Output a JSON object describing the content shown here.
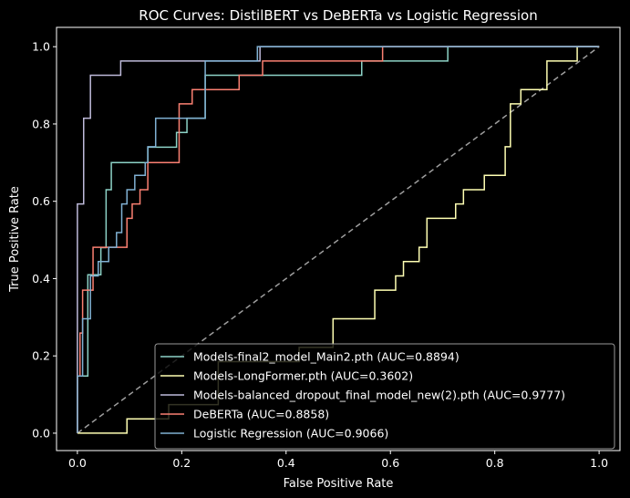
{
  "chart_data": {
    "type": "line",
    "title": "ROC Curves: DistilBERT vs DeBERTa vs Logistic Regression",
    "xlabel": "False Positive Rate",
    "ylabel": "True Positive Rate",
    "xlim": [
      -0.04,
      1.04
    ],
    "ylim": [
      -0.045,
      1.05
    ],
    "xticks": [
      0.0,
      0.2,
      0.4,
      0.6,
      0.8,
      1.0
    ],
    "yticks": [
      0.0,
      0.2,
      0.4,
      0.6,
      0.8,
      1.0
    ],
    "tick_labels_x": [
      "0.0",
      "0.2",
      "0.4",
      "0.6",
      "0.8",
      "1.0"
    ],
    "tick_labels_y": [
      "0.0",
      "0.2",
      "0.4",
      "0.6",
      "0.8",
      "1.0"
    ],
    "grid": false,
    "legend_position": "lower-right",
    "background": "#000000",
    "diagonal": {
      "color": "#9e9e9e",
      "style": "dashed",
      "points": [
        [
          0,
          0
        ],
        [
          1,
          1
        ]
      ]
    },
    "series": [
      {
        "name": "Models-final2_model_Main2.pth (AUC=0.8894)",
        "color": "#8dd3c7",
        "points": [
          [
            0,
            0
          ],
          [
            0,
            0.148
          ],
          [
            0.02,
            0.148
          ],
          [
            0.02,
            0.41
          ],
          [
            0.045,
            0.41
          ],
          [
            0.045,
            0.48
          ],
          [
            0.055,
            0.48
          ],
          [
            0.055,
            0.63
          ],
          [
            0.065,
            0.63
          ],
          [
            0.065,
            0.7
          ],
          [
            0.135,
            0.7
          ],
          [
            0.135,
            0.74
          ],
          [
            0.19,
            0.74
          ],
          [
            0.19,
            0.778
          ],
          [
            0.21,
            0.778
          ],
          [
            0.21,
            0.815
          ],
          [
            0.245,
            0.815
          ],
          [
            0.245,
            0.926
          ],
          [
            0.545,
            0.926
          ],
          [
            0.545,
            0.963
          ],
          [
            0.71,
            0.963
          ],
          [
            0.71,
            1.0
          ],
          [
            1.0,
            1.0
          ]
        ]
      },
      {
        "name": "Models-LongFormer.pth (AUC=0.3602)",
        "color": "#ffffb3",
        "points": [
          [
            0,
            0
          ],
          [
            0.095,
            0
          ],
          [
            0.095,
            0.037
          ],
          [
            0.175,
            0.037
          ],
          [
            0.175,
            0.074
          ],
          [
            0.27,
            0.074
          ],
          [
            0.27,
            0.185
          ],
          [
            0.425,
            0.185
          ],
          [
            0.425,
            0.222
          ],
          [
            0.49,
            0.222
          ],
          [
            0.49,
            0.296
          ],
          [
            0.57,
            0.296
          ],
          [
            0.57,
            0.37
          ],
          [
            0.61,
            0.37
          ],
          [
            0.61,
            0.407
          ],
          [
            0.625,
            0.407
          ],
          [
            0.625,
            0.444
          ],
          [
            0.655,
            0.444
          ],
          [
            0.655,
            0.481
          ],
          [
            0.67,
            0.481
          ],
          [
            0.67,
            0.556
          ],
          [
            0.725,
            0.556
          ],
          [
            0.725,
            0.593
          ],
          [
            0.74,
            0.593
          ],
          [
            0.74,
            0.63
          ],
          [
            0.78,
            0.63
          ],
          [
            0.78,
            0.667
          ],
          [
            0.82,
            0.667
          ],
          [
            0.82,
            0.741
          ],
          [
            0.83,
            0.741
          ],
          [
            0.83,
            0.852
          ],
          [
            0.85,
            0.852
          ],
          [
            0.85,
            0.889
          ],
          [
            0.875,
            0.889
          ],
          [
            0.875,
            0.889
          ],
          [
            0.9,
            0.889
          ],
          [
            0.9,
            0.963
          ],
          [
            0.958,
            0.963
          ],
          [
            0.958,
            1.0
          ],
          [
            1.0,
            1.0
          ]
        ]
      },
      {
        "name": "Models-balanced_dropout_final_model_new(2).pth (AUC=0.9777)",
        "color": "#bebada",
        "points": [
          [
            0,
            0
          ],
          [
            0,
            0.593
          ],
          [
            0.012,
            0.593
          ],
          [
            0.012,
            0.815
          ],
          [
            0.025,
            0.815
          ],
          [
            0.025,
            0.926
          ],
          [
            0.083,
            0.926
          ],
          [
            0.083,
            0.963
          ],
          [
            0.35,
            0.963
          ],
          [
            0.35,
            1.0
          ],
          [
            1.0,
            1.0
          ]
        ]
      },
      {
        "name": "DeBERTa (AUC=0.8858)",
        "color": "#fb8072",
        "points": [
          [
            0,
            0
          ],
          [
            0,
            0.148
          ],
          [
            0.005,
            0.148
          ],
          [
            0.005,
            0.259
          ],
          [
            0.01,
            0.259
          ],
          [
            0.01,
            0.37
          ],
          [
            0.03,
            0.37
          ],
          [
            0.03,
            0.481
          ],
          [
            0.095,
            0.481
          ],
          [
            0.095,
            0.556
          ],
          [
            0.105,
            0.556
          ],
          [
            0.105,
            0.593
          ],
          [
            0.12,
            0.593
          ],
          [
            0.12,
            0.63
          ],
          [
            0.135,
            0.63
          ],
          [
            0.135,
            0.7
          ],
          [
            0.195,
            0.7
          ],
          [
            0.195,
            0.852
          ],
          [
            0.22,
            0.852
          ],
          [
            0.22,
            0.889
          ],
          [
            0.31,
            0.889
          ],
          [
            0.31,
            0.926
          ],
          [
            0.355,
            0.926
          ],
          [
            0.355,
            0.963
          ],
          [
            0.585,
            0.963
          ],
          [
            0.585,
            1.0
          ],
          [
            1.0,
            1.0
          ]
        ]
      },
      {
        "name": "Logistic Regression (AUC=0.9066)",
        "color": "#80b1d3",
        "points": [
          [
            0,
            0
          ],
          [
            0,
            0.148
          ],
          [
            0.01,
            0.148
          ],
          [
            0.01,
            0.296
          ],
          [
            0.025,
            0.296
          ],
          [
            0.025,
            0.407
          ],
          [
            0.04,
            0.407
          ],
          [
            0.04,
            0.444
          ],
          [
            0.06,
            0.444
          ],
          [
            0.06,
            0.481
          ],
          [
            0.075,
            0.481
          ],
          [
            0.075,
            0.519
          ],
          [
            0.085,
            0.519
          ],
          [
            0.085,
            0.593
          ],
          [
            0.095,
            0.593
          ],
          [
            0.095,
            0.63
          ],
          [
            0.11,
            0.63
          ],
          [
            0.11,
            0.667
          ],
          [
            0.13,
            0.667
          ],
          [
            0.13,
            0.7
          ],
          [
            0.135,
            0.7
          ],
          [
            0.135,
            0.741
          ],
          [
            0.15,
            0.741
          ],
          [
            0.15,
            0.815
          ],
          [
            0.245,
            0.815
          ],
          [
            0.245,
            0.963
          ],
          [
            0.345,
            0.963
          ],
          [
            0.345,
            1.0
          ],
          [
            1.0,
            1.0
          ]
        ]
      }
    ]
  }
}
